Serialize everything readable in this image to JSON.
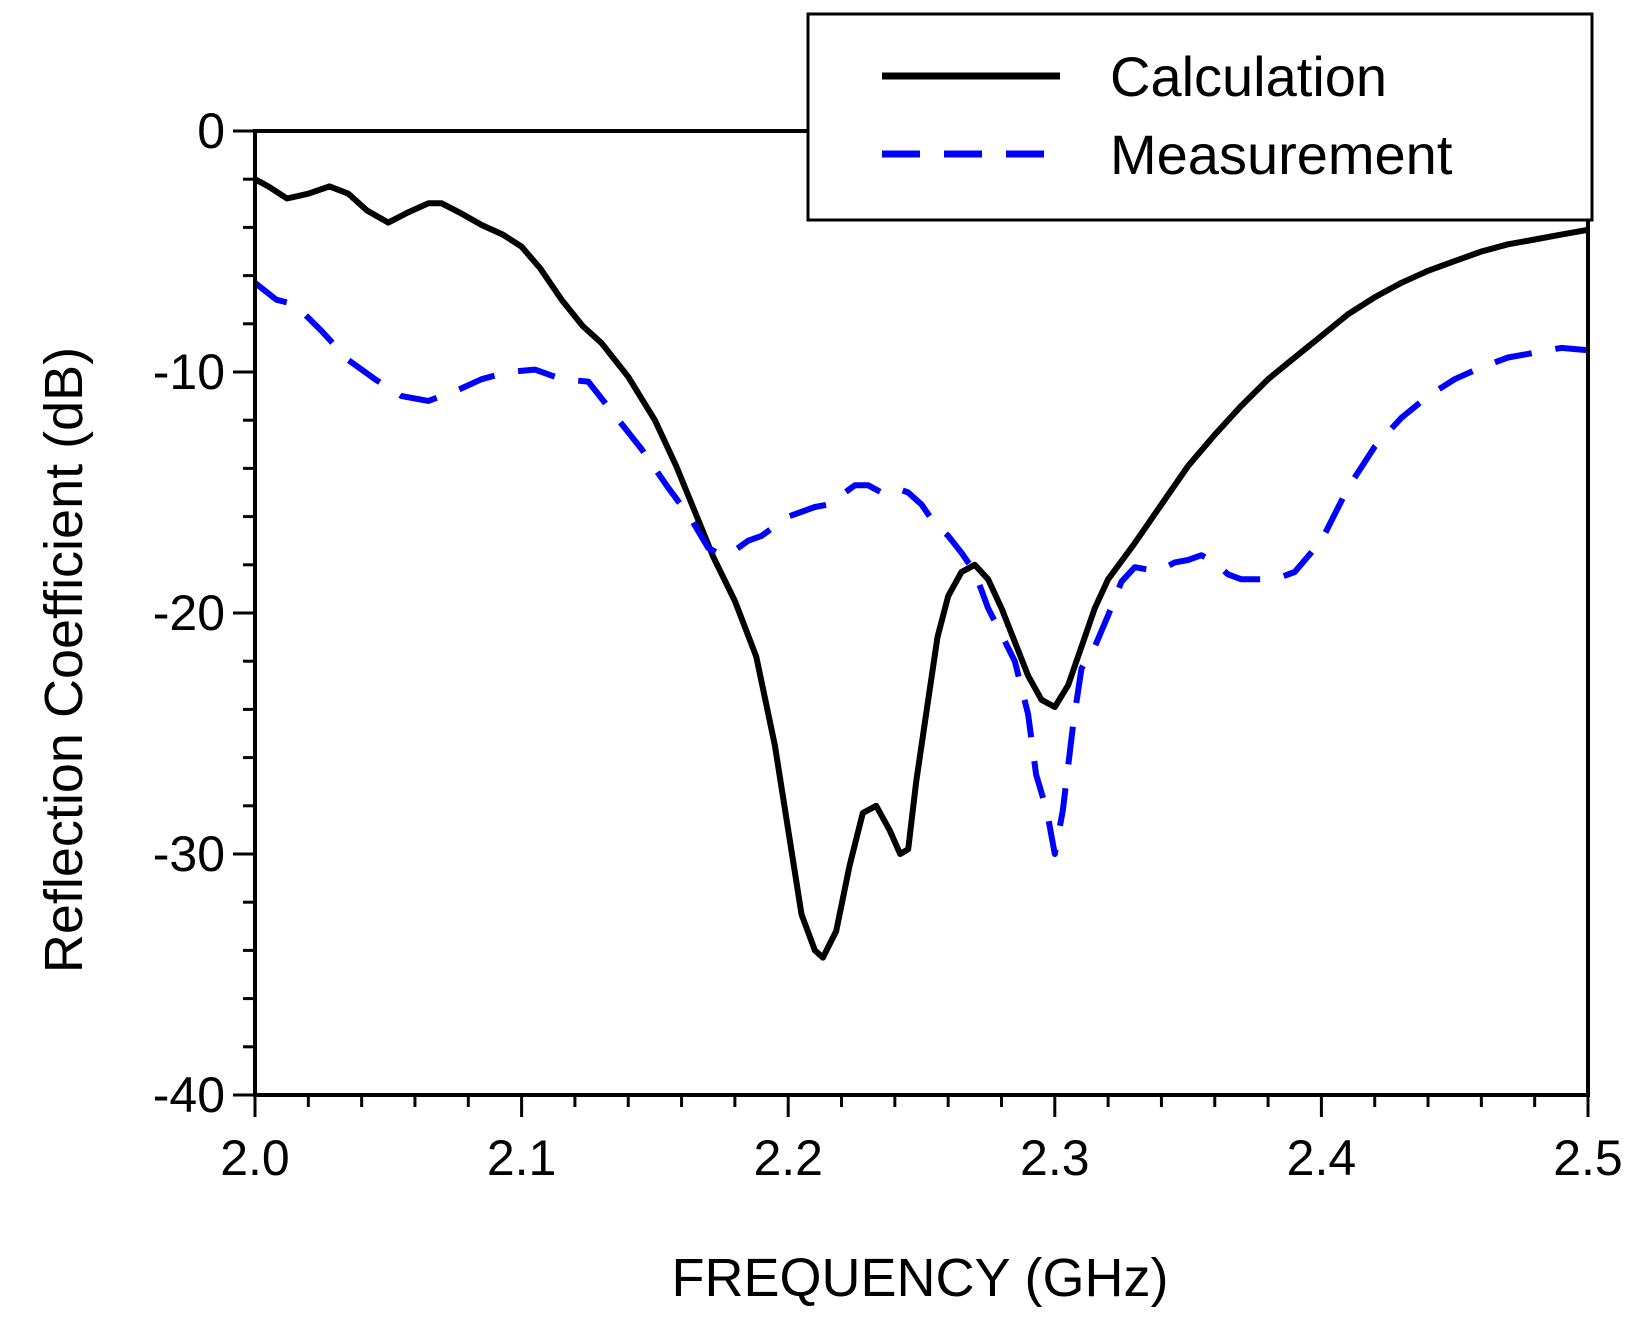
{
  "chart_data": {
    "type": "line",
    "xlabel": "FREQUENCY (GHz)",
    "ylabel": "Reflection Coefficient (dB)",
    "xlim": [
      2.0,
      2.5
    ],
    "ylim": [
      -40,
      0
    ],
    "xticks": [
      "2.0",
      "2.1",
      "2.2",
      "2.3",
      "2.4",
      "2.5"
    ],
    "yticks": [
      "0",
      "-10",
      "-20",
      "-30",
      "-40"
    ],
    "legend": {
      "position": "top-right"
    },
    "series": [
      {
        "name": "Calculation",
        "color": "#000000",
        "style": "solid",
        "x": [
          2.0,
          2.005,
          2.012,
          2.02,
          2.028,
          2.035,
          2.042,
          2.05,
          2.057,
          2.065,
          2.07,
          2.077,
          2.085,
          2.093,
          2.1,
          2.107,
          2.115,
          2.123,
          2.13,
          2.14,
          2.15,
          2.158,
          2.165,
          2.172,
          2.18,
          2.188,
          2.195,
          2.2,
          2.205,
          2.21,
          2.213,
          2.218,
          2.223,
          2.228,
          2.233,
          2.238,
          2.242,
          2.245,
          2.248,
          2.252,
          2.256,
          2.26,
          2.265,
          2.27,
          2.275,
          2.28,
          2.285,
          2.29,
          2.295,
          2.3,
          2.305,
          2.31,
          2.315,
          2.32,
          2.33,
          2.34,
          2.35,
          2.36,
          2.37,
          2.38,
          2.39,
          2.4,
          2.41,
          2.42,
          2.43,
          2.44,
          2.45,
          2.46,
          2.47,
          2.48,
          2.49,
          2.5
        ],
        "y": [
          -2.0,
          -2.3,
          -2.8,
          -2.6,
          -2.3,
          -2.6,
          -3.3,
          -3.8,
          -3.4,
          -3.0,
          -3.0,
          -3.4,
          -3.9,
          -4.3,
          -4.8,
          -5.7,
          -7.0,
          -8.1,
          -8.8,
          -10.2,
          -12.0,
          -13.9,
          -15.8,
          -17.7,
          -19.5,
          -21.8,
          -25.5,
          -29.0,
          -32.5,
          -34.0,
          -34.3,
          -33.2,
          -30.5,
          -28.3,
          -28.0,
          -29.0,
          -30.0,
          -29.8,
          -27.0,
          -24.0,
          -21.0,
          -19.3,
          -18.3,
          -18.0,
          -18.6,
          -19.8,
          -21.2,
          -22.6,
          -23.6,
          -23.9,
          -23.0,
          -21.4,
          -19.8,
          -18.6,
          -17.1,
          -15.5,
          -13.9,
          -12.6,
          -11.4,
          -10.3,
          -9.4,
          -8.5,
          -7.6,
          -6.9,
          -6.3,
          -5.8,
          -5.4,
          -5.0,
          -4.7,
          -4.5,
          -4.3,
          -4.1
        ]
      },
      {
        "name": "Measurement",
        "color": "#0000ff",
        "style": "dashed",
        "x": [
          2.0,
          2.008,
          2.015,
          2.025,
          2.035,
          2.045,
          2.055,
          2.065,
          2.075,
          2.085,
          2.095,
          2.105,
          2.115,
          2.125,
          2.135,
          2.145,
          2.155,
          2.163,
          2.17,
          2.175,
          2.18,
          2.185,
          2.19,
          2.2,
          2.21,
          2.215,
          2.22,
          2.225,
          2.23,
          2.235,
          2.24,
          2.245,
          2.25,
          2.255,
          2.26,
          2.265,
          2.27,
          2.275,
          2.28,
          2.285,
          2.29,
          2.293,
          2.297,
          2.3,
          2.303,
          2.307,
          2.31,
          2.315,
          2.32,
          2.325,
          2.33,
          2.335,
          2.34,
          2.345,
          2.35,
          2.355,
          2.36,
          2.365,
          2.37,
          2.375,
          2.38,
          2.385,
          2.39,
          2.4,
          2.41,
          2.42,
          2.43,
          2.44,
          2.45,
          2.46,
          2.47,
          2.48,
          2.49,
          2.5
        ],
        "y": [
          -6.3,
          -7.0,
          -7.2,
          -8.3,
          -9.5,
          -10.3,
          -11.0,
          -11.2,
          -10.8,
          -10.3,
          -10.0,
          -9.9,
          -10.3,
          -10.4,
          -11.8,
          -13.2,
          -14.8,
          -16.0,
          -17.3,
          -17.6,
          -17.4,
          -17.0,
          -16.8,
          -16.0,
          -15.6,
          -15.5,
          -15.1,
          -14.7,
          -14.7,
          -15.0,
          -14.8,
          -15.0,
          -15.5,
          -16.3,
          -16.8,
          -17.5,
          -18.3,
          -19.8,
          -20.9,
          -22.0,
          -24.2,
          -26.7,
          -28.2,
          -30.0,
          -28.2,
          -24.5,
          -22.3,
          -21.4,
          -20.1,
          -18.7,
          -18.1,
          -18.2,
          -18.2,
          -17.9,
          -17.8,
          -17.6,
          -17.9,
          -18.4,
          -18.6,
          -18.6,
          -18.6,
          -18.5,
          -18.3,
          -17.0,
          -14.8,
          -13.1,
          -11.9,
          -11.0,
          -10.3,
          -9.8,
          -9.4,
          -9.2,
          -9.0,
          -9.1
        ]
      }
    ]
  }
}
